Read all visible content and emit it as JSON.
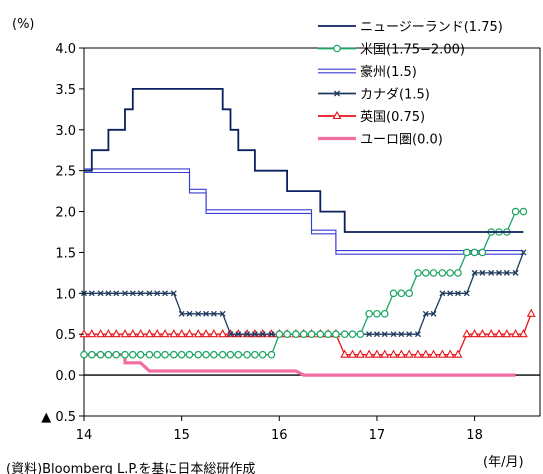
{
  "chart_data": {
    "type": "line",
    "ylabel": "(%)",
    "xlabel": "(年/月)",
    "source_note": "(資料)Bloomberg L.P.を基に日本総研作成",
    "ylim": [
      -0.5,
      4.0
    ],
    "xlim": [
      14.0,
      18.67
    ],
    "yticks": [
      {
        "value": 4.0,
        "label": "4.0"
      },
      {
        "value": 3.5,
        "label": "3.5"
      },
      {
        "value": 3.0,
        "label": "3.0"
      },
      {
        "value": 2.5,
        "label": "2.5"
      },
      {
        "value": 2.0,
        "label": "2.0"
      },
      {
        "value": 1.5,
        "label": "1.5"
      },
      {
        "value": 1.0,
        "label": "1.0"
      },
      {
        "value": 0.5,
        "label": "0.5"
      },
      {
        "value": 0.0,
        "label": "0.0"
      },
      {
        "value": -0.5,
        "label": "▲ 0.5"
      }
    ],
    "xticks": [
      {
        "value": 14,
        "label": "14"
      },
      {
        "value": 15,
        "label": "15"
      },
      {
        "value": 16,
        "label": "16"
      },
      {
        "value": 17,
        "label": "17"
      },
      {
        "value": 18,
        "label": "18"
      }
    ],
    "series": [
      {
        "name": "ニュージーランド(1.75)",
        "color": "#0b1f5c",
        "style": "solid",
        "marker": "none",
        "steps": [
          [
            14.0,
            2.5
          ],
          [
            14.08,
            2.75
          ],
          [
            14.25,
            3.0
          ],
          [
            14.42,
            3.25
          ],
          [
            14.5,
            3.5
          ],
          [
            15.42,
            3.25
          ],
          [
            15.5,
            3.0
          ],
          [
            15.58,
            2.75
          ],
          [
            15.75,
            2.5
          ],
          [
            15.92,
            2.5
          ],
          [
            16.17,
            2.25
          ],
          [
            16.58,
            2.0
          ],
          [
            16.75,
            1.75
          ],
          [
            16.83,
            1.75
          ]
        ],
        "points": [
          [
            14.0,
            2.5
          ],
          [
            14.08,
            2.5
          ],
          [
            14.08,
            2.75
          ],
          [
            14.25,
            2.75
          ],
          [
            14.25,
            3.0
          ],
          [
            14.42,
            3.0
          ],
          [
            14.42,
            3.25
          ],
          [
            14.5,
            3.25
          ],
          [
            14.5,
            3.5
          ],
          [
            15.42,
            3.5
          ],
          [
            15.42,
            3.25
          ],
          [
            15.5,
            3.25
          ],
          [
            15.5,
            3.0
          ],
          [
            15.58,
            3.0
          ],
          [
            15.58,
            2.75
          ],
          [
            15.75,
            2.75
          ],
          [
            15.75,
            2.5
          ],
          [
            16.08,
            2.5
          ],
          [
            16.08,
            2.25
          ],
          [
            16.42,
            2.25
          ],
          [
            16.42,
            2.0
          ],
          [
            16.67,
            2.0
          ],
          [
            16.67,
            1.75
          ],
          [
            16.92,
            1.75
          ],
          [
            18.5,
            1.75
          ]
        ]
      },
      {
        "name": "米国(1.75−2.00)",
        "color": "#1aa561",
        "style": "solid",
        "marker": "circle",
        "points": [
          [
            14.0,
            0.25
          ],
          [
            14.08,
            0.25
          ],
          [
            14.17,
            0.25
          ],
          [
            14.25,
            0.25
          ],
          [
            14.33,
            0.25
          ],
          [
            14.42,
            0.25
          ],
          [
            14.5,
            0.25
          ],
          [
            14.58,
            0.25
          ],
          [
            14.67,
            0.25
          ],
          [
            14.75,
            0.25
          ],
          [
            14.83,
            0.25
          ],
          [
            14.92,
            0.25
          ],
          [
            15.0,
            0.25
          ],
          [
            15.08,
            0.25
          ],
          [
            15.17,
            0.25
          ],
          [
            15.25,
            0.25
          ],
          [
            15.33,
            0.25
          ],
          [
            15.42,
            0.25
          ],
          [
            15.5,
            0.25
          ],
          [
            15.58,
            0.25
          ],
          [
            15.67,
            0.25
          ],
          [
            15.75,
            0.25
          ],
          [
            15.83,
            0.25
          ],
          [
            15.92,
            0.25
          ],
          [
            16.0,
            0.5
          ],
          [
            16.08,
            0.5
          ],
          [
            16.17,
            0.5
          ],
          [
            16.25,
            0.5
          ],
          [
            16.33,
            0.5
          ],
          [
            16.42,
            0.5
          ],
          [
            16.5,
            0.5
          ],
          [
            16.58,
            0.5
          ],
          [
            16.67,
            0.5
          ],
          [
            16.75,
            0.5
          ],
          [
            16.83,
            0.5
          ],
          [
            16.92,
            0.75
          ],
          [
            17.0,
            0.75
          ],
          [
            17.08,
            0.75
          ],
          [
            17.17,
            1.0
          ],
          [
            17.25,
            1.0
          ],
          [
            17.33,
            1.0
          ],
          [
            17.42,
            1.25
          ],
          [
            17.5,
            1.25
          ],
          [
            17.58,
            1.25
          ],
          [
            17.67,
            1.25
          ],
          [
            17.75,
            1.25
          ],
          [
            17.83,
            1.25
          ],
          [
            17.92,
            1.5
          ],
          [
            18.0,
            1.5
          ],
          [
            18.08,
            1.5
          ],
          [
            18.17,
            1.75
          ],
          [
            18.25,
            1.75
          ],
          [
            18.33,
            1.75
          ],
          [
            18.42,
            2.0
          ],
          [
            18.5,
            2.0
          ]
        ]
      },
      {
        "name": "豪州(1.5)",
        "color": "#3a3fd4",
        "style": "double",
        "marker": "none",
        "points": [
          [
            14.0,
            2.5
          ],
          [
            15.08,
            2.5
          ],
          [
            15.08,
            2.25
          ],
          [
            15.25,
            2.25
          ],
          [
            15.25,
            2.0
          ],
          [
            16.33,
            2.0
          ],
          [
            16.33,
            1.75
          ],
          [
            16.58,
            1.75
          ],
          [
            16.58,
            1.5
          ],
          [
            18.5,
            1.5
          ]
        ]
      },
      {
        "name": "カナダ(1.5)",
        "color": "#1f3a5f",
        "style": "solid",
        "marker": "x",
        "points": [
          [
            14.0,
            1.0
          ],
          [
            14.08,
            1.0
          ],
          [
            14.17,
            1.0
          ],
          [
            14.25,
            1.0
          ],
          [
            14.33,
            1.0
          ],
          [
            14.42,
            1.0
          ],
          [
            14.5,
            1.0
          ],
          [
            14.58,
            1.0
          ],
          [
            14.67,
            1.0
          ],
          [
            14.75,
            1.0
          ],
          [
            14.83,
            1.0
          ],
          [
            14.92,
            1.0
          ],
          [
            15.0,
            0.75
          ],
          [
            15.08,
            0.75
          ],
          [
            15.17,
            0.75
          ],
          [
            15.25,
            0.75
          ],
          [
            15.33,
            0.75
          ],
          [
            15.42,
            0.75
          ],
          [
            15.5,
            0.5
          ],
          [
            15.58,
            0.5
          ],
          [
            15.67,
            0.5
          ],
          [
            15.75,
            0.5
          ],
          [
            15.83,
            0.5
          ],
          [
            15.92,
            0.5
          ],
          [
            16.0,
            0.5
          ],
          [
            16.08,
            0.5
          ],
          [
            16.17,
            0.5
          ],
          [
            16.25,
            0.5
          ],
          [
            16.33,
            0.5
          ],
          [
            16.42,
            0.5
          ],
          [
            16.5,
            0.5
          ],
          [
            16.58,
            0.5
          ],
          [
            16.67,
            0.5
          ],
          [
            16.75,
            0.5
          ],
          [
            16.83,
            0.5
          ],
          [
            16.92,
            0.5
          ],
          [
            17.0,
            0.5
          ],
          [
            17.08,
            0.5
          ],
          [
            17.17,
            0.5
          ],
          [
            17.25,
            0.5
          ],
          [
            17.33,
            0.5
          ],
          [
            17.42,
            0.5
          ],
          [
            17.5,
            0.75
          ],
          [
            17.58,
            0.75
          ],
          [
            17.67,
            1.0
          ],
          [
            17.75,
            1.0
          ],
          [
            17.83,
            1.0
          ],
          [
            17.92,
            1.0
          ],
          [
            18.0,
            1.25
          ],
          [
            18.08,
            1.25
          ],
          [
            18.17,
            1.25
          ],
          [
            18.25,
            1.25
          ],
          [
            18.33,
            1.25
          ],
          [
            18.42,
            1.25
          ],
          [
            18.5,
            1.5
          ]
        ]
      },
      {
        "name": "英国(0.75)",
        "color": "#e8141a",
        "style": "solid",
        "marker": "triangle",
        "points": [
          [
            14.0,
            0.5
          ],
          [
            14.08,
            0.5
          ],
          [
            14.17,
            0.5
          ],
          [
            14.25,
            0.5
          ],
          [
            14.33,
            0.5
          ],
          [
            14.42,
            0.5
          ],
          [
            14.5,
            0.5
          ],
          [
            14.58,
            0.5
          ],
          [
            14.67,
            0.5
          ],
          [
            14.75,
            0.5
          ],
          [
            14.83,
            0.5
          ],
          [
            14.92,
            0.5
          ],
          [
            15.0,
            0.5
          ],
          [
            15.08,
            0.5
          ],
          [
            15.17,
            0.5
          ],
          [
            15.25,
            0.5
          ],
          [
            15.33,
            0.5
          ],
          [
            15.42,
            0.5
          ],
          [
            15.5,
            0.5
          ],
          [
            15.58,
            0.5
          ],
          [
            15.67,
            0.5
          ],
          [
            15.75,
            0.5
          ],
          [
            15.83,
            0.5
          ],
          [
            15.92,
            0.5
          ],
          [
            16.0,
            0.5
          ],
          [
            16.08,
            0.5
          ],
          [
            16.17,
            0.5
          ],
          [
            16.25,
            0.5
          ],
          [
            16.33,
            0.5
          ],
          [
            16.42,
            0.5
          ],
          [
            16.5,
            0.5
          ],
          [
            16.58,
            0.5
          ],
          [
            16.67,
            0.25
          ],
          [
            16.75,
            0.25
          ],
          [
            16.83,
            0.25
          ],
          [
            16.92,
            0.25
          ],
          [
            17.0,
            0.25
          ],
          [
            17.08,
            0.25
          ],
          [
            17.17,
            0.25
          ],
          [
            17.25,
            0.25
          ],
          [
            17.33,
            0.25
          ],
          [
            17.42,
            0.25
          ],
          [
            17.5,
            0.25
          ],
          [
            17.58,
            0.25
          ],
          [
            17.67,
            0.25
          ],
          [
            17.75,
            0.25
          ],
          [
            17.83,
            0.25
          ],
          [
            17.92,
            0.5
          ],
          [
            18.0,
            0.5
          ],
          [
            18.08,
            0.5
          ],
          [
            18.17,
            0.5
          ],
          [
            18.25,
            0.5
          ],
          [
            18.33,
            0.5
          ],
          [
            18.42,
            0.5
          ],
          [
            18.5,
            0.5
          ],
          [
            18.58,
            0.75
          ]
        ]
      },
      {
        "name": "ユーロ圏(0.0)",
        "color": "#f06fa0",
        "style": "solid",
        "marker": "none",
        "points": [
          [
            14.0,
            0.25
          ],
          [
            14.42,
            0.25
          ],
          [
            14.42,
            0.15
          ],
          [
            14.58,
            0.15
          ],
          [
            14.67,
            0.05
          ],
          [
            16.17,
            0.05
          ],
          [
            16.25,
            0.0
          ],
          [
            18.42,
            0.0
          ]
        ]
      }
    ]
  }
}
